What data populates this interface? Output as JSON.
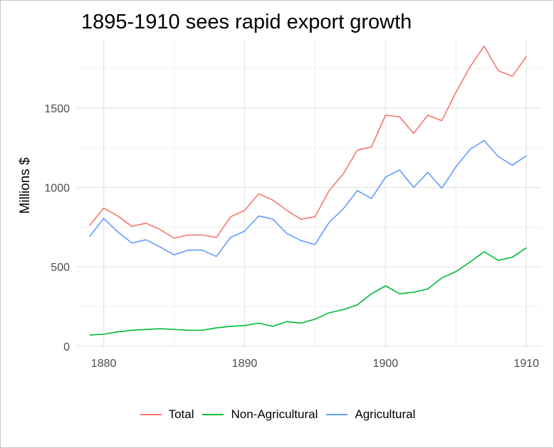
{
  "chart_data": {
    "type": "line",
    "title": "1895-1910 sees rapid export growth",
    "xlabel": "",
    "ylabel": "Millions $",
    "xlim": [
      1878.1,
      1911.1
    ],
    "ylim": [
      -10,
      1930
    ],
    "x_ticks": [
      1880,
      1890,
      1900,
      1910
    ],
    "y_ticks": [
      0,
      500,
      1000,
      1500
    ],
    "grid": true,
    "legend_position": "bottom",
    "x": [
      1879,
      1880,
      1881,
      1882,
      1883,
      1884,
      1885,
      1886,
      1887,
      1888,
      1889,
      1890,
      1891,
      1892,
      1893,
      1894,
      1895,
      1896,
      1897,
      1898,
      1899,
      1900,
      1901,
      1902,
      1903,
      1904,
      1905,
      1906,
      1907,
      1908,
      1909,
      1910
    ],
    "series": [
      {
        "name": "Total",
        "color": "#F8766D",
        "values": [
          760,
          870,
          820,
          755,
          775,
          735,
          680,
          700,
          700,
          685,
          815,
          855,
          960,
          920,
          855,
          800,
          815,
          980,
          1085,
          1235,
          1255,
          1455,
          1445,
          1340,
          1455,
          1420,
          1600,
          1760,
          1890,
          1735,
          1700,
          1825
        ]
      },
      {
        "name": "Non-Agricultural",
        "color": "#00BA38",
        "values": [
          70,
          75,
          90,
          100,
          105,
          110,
          105,
          100,
          100,
          115,
          125,
          130,
          145,
          125,
          155,
          145,
          170,
          210,
          230,
          260,
          330,
          380,
          330,
          340,
          360,
          430,
          470,
          530,
          595,
          540,
          560,
          620
        ]
      },
      {
        "name": "Agricultural",
        "color": "#619CFF",
        "values": [
          690,
          805,
          720,
          650,
          670,
          625,
          575,
          605,
          605,
          565,
          685,
          725,
          820,
          800,
          710,
          665,
          640,
          780,
          865,
          980,
          930,
          1065,
          1110,
          1000,
          1095,
          995,
          1130,
          1240,
          1295,
          1195,
          1140,
          1200
        ]
      }
    ]
  }
}
